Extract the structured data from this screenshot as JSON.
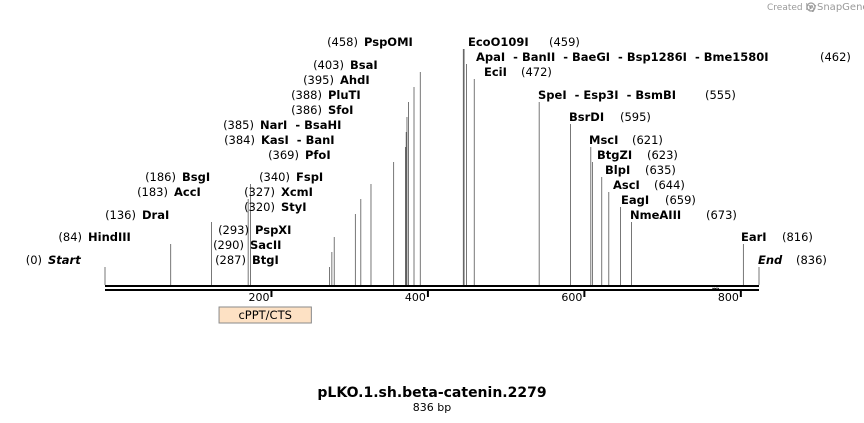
{
  "credit": {
    "text": "Created by",
    "brand": "SnapGene"
  },
  "sequence": {
    "name": "pLKO.1.sh.beta-catenin.2279",
    "length_label": "836 bp",
    "length": 836,
    "ruler_ticks": [
      "200",
      "400",
      "600",
      "800"
    ],
    "ruler_values": [
      200,
      400,
      600,
      800
    ]
  },
  "feature": {
    "label": "cPPT/CTS",
    "start": 133,
    "end": 251,
    "color": "#fde1c4"
  },
  "sites": [
    {
      "pos": "(0)",
      "name": "Start",
      "italic": true,
      "at": 0
    },
    {
      "pos": "(84)",
      "name": "HindIII",
      "at": 84
    },
    {
      "pos": "(136)",
      "name": "DraI",
      "at": 136
    },
    {
      "pos": "(183)",
      "name": "AccI",
      "at": 183
    },
    {
      "pos": "(186)",
      "name": "BsgI",
      "at": 186
    },
    {
      "pos": "(287)",
      "name": "BtgI",
      "at": 287
    },
    {
      "pos": "(290)",
      "name": "SacII",
      "at": 290
    },
    {
      "pos": "(293)",
      "name": "PspXI",
      "at": 293
    },
    {
      "pos": "(320)",
      "name": "StyI",
      "at": 320
    },
    {
      "pos": "(327)",
      "name": "XcmI",
      "at": 327
    },
    {
      "pos": "(340)",
      "name": "FspI",
      "at": 340
    },
    {
      "pos": "(369)",
      "name": "PfoI",
      "at": 369
    },
    {
      "pos": "(384)",
      "name": "KasI  - BanI",
      "at": 384
    },
    {
      "pos": "(385)",
      "name": "NarI  - BsaHI",
      "at": 385
    },
    {
      "pos": "(386)",
      "name": "SfoI",
      "at": 386
    },
    {
      "pos": "(388)",
      "name": "PluTI",
      "at": 388
    },
    {
      "pos": "(395)",
      "name": "AhdI",
      "at": 395
    },
    {
      "pos": "(403)",
      "name": "BsaI",
      "at": 403
    },
    {
      "pos": "(458)",
      "name": "PspOMI",
      "at": 458
    },
    {
      "pos": "(459)",
      "name": "EcoO109I",
      "at": 459,
      "pos_after": true
    },
    {
      "pos": "(462)",
      "name": "ApaI  - BanII  - BaeGI  - Bsp1286I  - Bme1580I",
      "at": 462,
      "pos_after": true
    },
    {
      "pos": "(472)",
      "name": "EciI",
      "at": 472,
      "pos_after": true
    },
    {
      "pos": "(555)",
      "name": "SpeI  - Esp3I  - BsmBI",
      "at": 555,
      "pos_after": true
    },
    {
      "pos": "(595)",
      "name": "BsrDI",
      "at": 595,
      "pos_after": true
    },
    {
      "pos": "(621)",
      "name": "MscI",
      "at": 621,
      "pos_after": true
    },
    {
      "pos": "(623)",
      "name": "BtgZI",
      "at": 623,
      "pos_after": true
    },
    {
      "pos": "(635)",
      "name": "BlpI",
      "at": 635,
      "pos_after": true
    },
    {
      "pos": "(644)",
      "name": "AscI",
      "at": 644,
      "pos_after": true
    },
    {
      "pos": "(659)",
      "name": "EagI",
      "at": 659,
      "pos_after": true
    },
    {
      "pos": "(673)",
      "name": "NmeAIII",
      "at": 673,
      "pos_after": true
    },
    {
      "pos": "(816)",
      "name": "EarI",
      "at": 816,
      "pos_after": true
    },
    {
      "pos": "(836)",
      "name": "End",
      "italic": true,
      "at": 836,
      "pos_after": true
    }
  ]
}
